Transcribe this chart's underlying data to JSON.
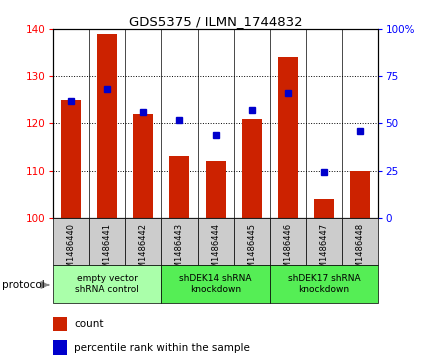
{
  "title": "GDS5375 / ILMN_1744832",
  "samples": [
    "GSM1486440",
    "GSM1486441",
    "GSM1486442",
    "GSM1486443",
    "GSM1486444",
    "GSM1486445",
    "GSM1486446",
    "GSM1486447",
    "GSM1486448"
  ],
  "counts": [
    125,
    139,
    122,
    113,
    112,
    121,
    134,
    104,
    110
  ],
  "percentiles": [
    62,
    68,
    56,
    52,
    44,
    57,
    66,
    24,
    46
  ],
  "ylim_left": [
    100,
    140
  ],
  "ylim_right": [
    0,
    100
  ],
  "yticks_left": [
    100,
    110,
    120,
    130,
    140
  ],
  "yticks_right": [
    0,
    25,
    50,
    75,
    100
  ],
  "groups": [
    {
      "label": "empty vector\nshRNA control",
      "start": 0,
      "end": 3,
      "color": "#aaffaa"
    },
    {
      "label": "shDEK14 shRNA\nknockdown",
      "start": 3,
      "end": 6,
      "color": "#55ee55"
    },
    {
      "label": "shDEK17 shRNA\nknockdown",
      "start": 6,
      "end": 9,
      "color": "#55ee55"
    }
  ],
  "bar_color": "#cc2200",
  "dot_color": "#0000cc",
  "bar_width": 0.55,
  "background_color": "#ffffff",
  "protocol_label": "protocol",
  "legend_count": "count",
  "legend_percentile": "percentile rank within the sample",
  "chart_bg": "#ffffff",
  "sample_box_color": "#cccccc"
}
